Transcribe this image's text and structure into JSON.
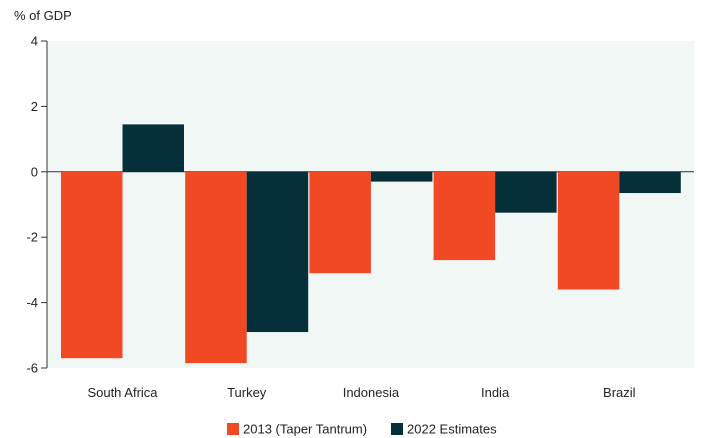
{
  "chart_data": {
    "type": "bar",
    "title": "",
    "ylabel": "% of GDP",
    "xlabel": "",
    "categories": [
      "South Africa",
      "Turkey",
      "Indonesia",
      "India",
      "Brazil"
    ],
    "series": [
      {
        "name": "2013 (Taper Tantrum)",
        "color": "#f04923",
        "values": [
          -5.7,
          -5.85,
          -3.1,
          -2.7,
          -3.6
        ]
      },
      {
        "name": "2022 Estimates",
        "color": "#05303a",
        "values": [
          1.45,
          -4.9,
          -0.3,
          -1.25,
          -0.65
        ]
      }
    ],
    "ylim": [
      -6,
      4
    ],
    "yticks": [
      4,
      2,
      0,
      -2,
      -4,
      -6
    ],
    "grid": false,
    "background_color": "#f0f7f5",
    "legend_position": "bottom"
  }
}
